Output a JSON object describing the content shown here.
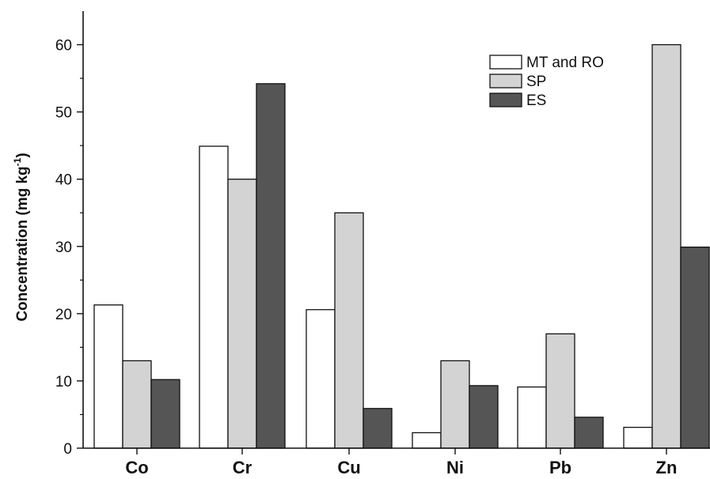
{
  "chart_data": {
    "type": "bar",
    "categories": [
      "Co",
      "Cr",
      "Cu",
      "Ni",
      "Pb",
      "Zn"
    ],
    "series": [
      {
        "name": "MT and RO",
        "color": "#ffffff",
        "values": [
          21.3,
          44.9,
          20.6,
          2.3,
          9.1,
          3.1
        ]
      },
      {
        "name": "SP",
        "color": "#d3d3d3",
        "values": [
          13.0,
          40.0,
          35.0,
          13.0,
          17.0,
          60.0
        ]
      },
      {
        "name": "ES",
        "color": "#555555",
        "values": [
          10.2,
          54.2,
          5.9,
          9.3,
          4.6,
          29.9
        ]
      }
    ],
    "ylabel": "Concentration (mg kg",
    "ylabel_sup": "-1",
    "ylabel_close": ")",
    "ylim": [
      0,
      65
    ],
    "yticks": [
      0,
      10,
      20,
      30,
      40,
      50,
      60
    ],
    "legend_position": "top-right",
    "grid": false
  }
}
